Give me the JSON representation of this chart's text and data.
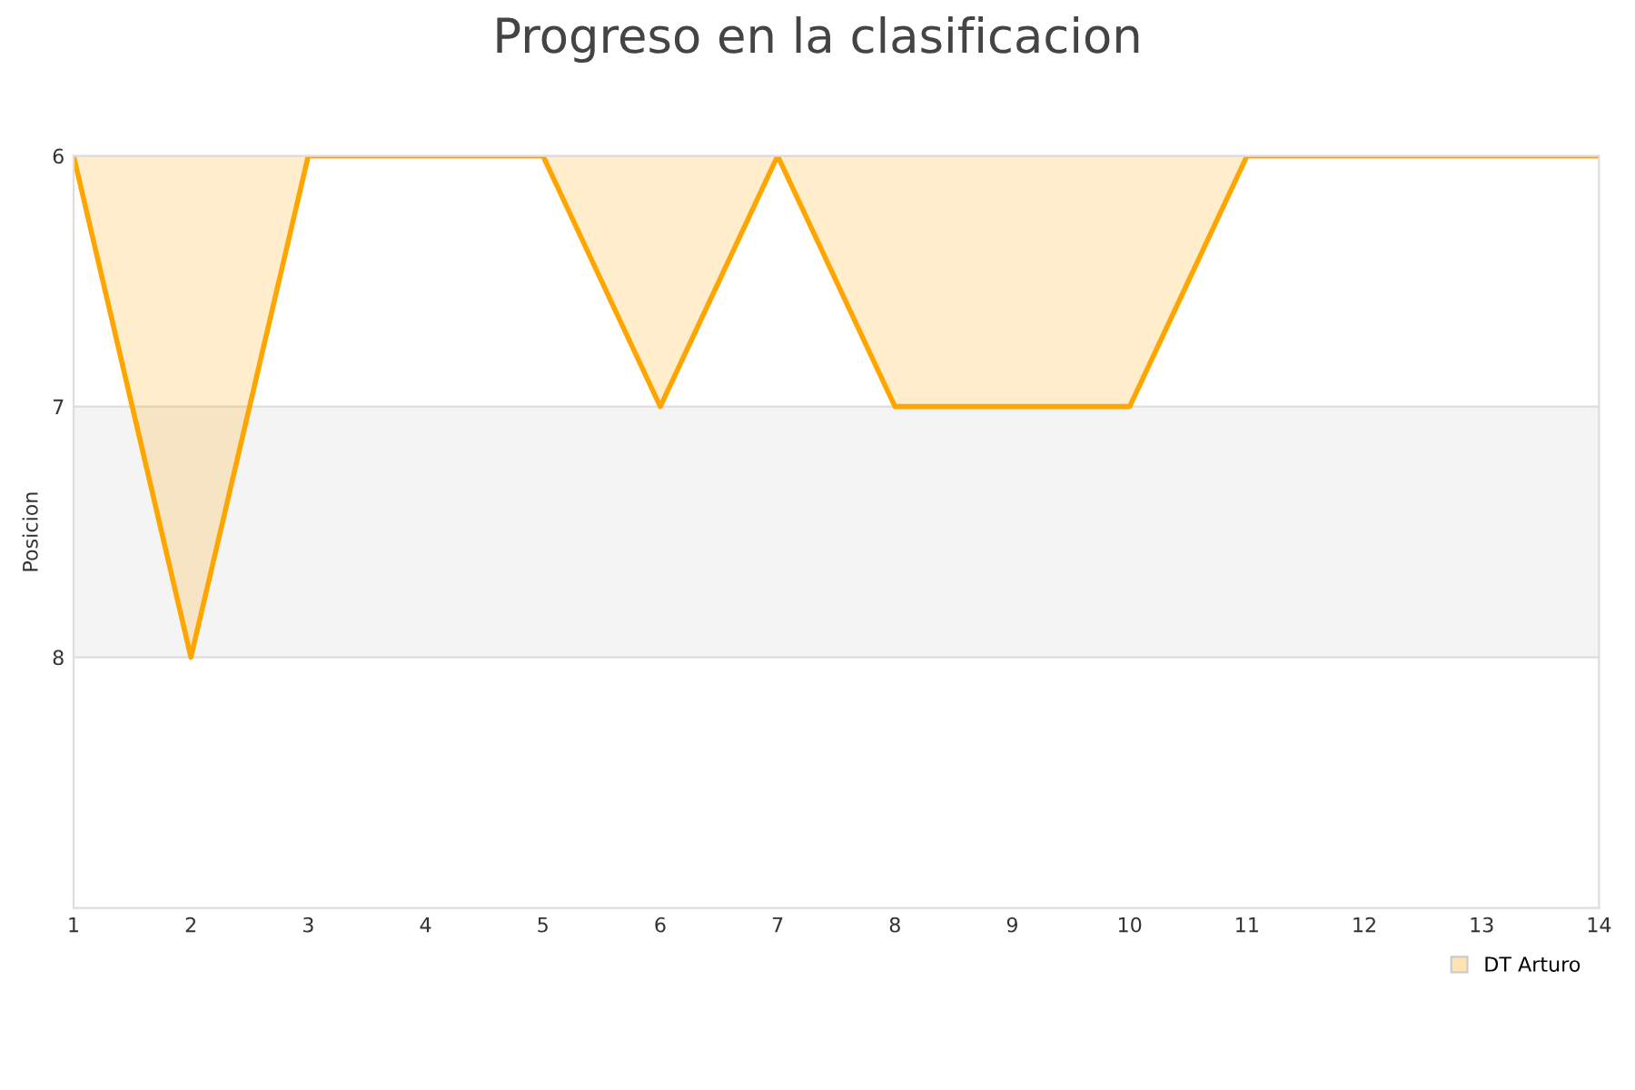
{
  "chart_data": {
    "type": "area",
    "title": "Progreso en la clasificacion",
    "ylabel": "Posicion",
    "x": [
      1,
      2,
      3,
      4,
      5,
      6,
      7,
      8,
      9,
      10,
      11,
      12,
      13,
      14
    ],
    "series": [
      {
        "name": "DT Arturo",
        "color": "#ffa500",
        "values": [
          6,
          8,
          6,
          6,
          6,
          7,
          6,
          7,
          7,
          7,
          6,
          6,
          6,
          6
        ]
      }
    ],
    "xlim": [
      1,
      14
    ],
    "xticks": [
      1,
      2,
      3,
      4,
      5,
      6,
      7,
      8,
      9,
      10,
      11,
      12,
      13,
      14
    ],
    "ylim": [
      9,
      6
    ],
    "yticks": [
      6,
      7,
      8
    ],
    "bands": [
      {
        "axis": "y",
        "from": 7,
        "to": 8,
        "color": "#f4f4f4"
      }
    ],
    "grid": "y",
    "legend": "bottom right",
    "marker": "none",
    "line_style": "solid"
  }
}
